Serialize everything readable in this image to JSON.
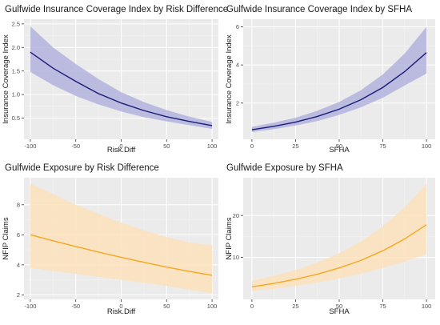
{
  "colors": {
    "panel_bg": "#ebebeb",
    "grid_major": "#ffffff",
    "coverage_line": "#1a1a7a",
    "coverage_band": "#b3b3dd",
    "exposure_line": "#f5a81e",
    "exposure_band": "#fbe2bc",
    "text": "#1a1a1a",
    "tick_text": "#4d4d4d"
  },
  "chart_data": [
    {
      "type": "line",
      "title": "Gulfwide Insurance Coverage Index by Risk Difference",
      "xlabel": "Risk.Diff",
      "ylabel": "Insurance Coverage Index",
      "xlim": [
        -107,
        107
      ],
      "ylim": [
        0.05,
        2.6
      ],
      "xticks": [
        -100,
        -50,
        0,
        50,
        100
      ],
      "xtick_labels": [
        "-100",
        "-50",
        "0",
        "50",
        "100"
      ],
      "yticks": [
        0.5,
        1.0,
        1.5,
        2.0,
        2.5
      ],
      "ytick_labels": [
        "0.5",
        "1.0",
        "1.5",
        "2.0",
        "2.5"
      ],
      "grid": true,
      "color": "coverage",
      "x": [
        -100,
        -75,
        -50,
        -25,
        0,
        25,
        50,
        75,
        100
      ],
      "y": [
        1.9,
        1.56,
        1.28,
        1.02,
        0.82,
        0.66,
        0.53,
        0.43,
        0.34
      ],
      "lower": [
        1.48,
        1.2,
        0.97,
        0.79,
        0.64,
        0.52,
        0.43,
        0.35,
        0.27
      ],
      "upper": [
        2.45,
        2.0,
        1.65,
        1.33,
        1.05,
        0.84,
        0.67,
        0.53,
        0.42
      ]
    },
    {
      "type": "line",
      "title": "Gulfwide Insurance Coverage Index by SFHA",
      "xlabel": "SFHA",
      "ylabel": "Insurance Coverage Index",
      "xlim": [
        -5,
        105
      ],
      "ylim": [
        0.1,
        6.4
      ],
      "xticks": [
        0,
        25,
        50,
        75,
        100
      ],
      "xtick_labels": [
        "0",
        "25",
        "50",
        "75",
        "100"
      ],
      "yticks": [
        2,
        4,
        6
      ],
      "ytick_labels": [
        "2",
        "4",
        "6"
      ],
      "grid": true,
      "color": "coverage",
      "x": [
        0,
        12.5,
        25,
        37.5,
        50,
        62.5,
        75,
        87.5,
        100
      ],
      "y": [
        0.6,
        0.78,
        1.0,
        1.3,
        1.68,
        2.18,
        2.82,
        3.65,
        4.65
      ],
      "lower": [
        0.48,
        0.63,
        0.82,
        1.06,
        1.38,
        1.78,
        2.28,
        2.92,
        3.55
      ],
      "upper": [
        0.75,
        0.97,
        1.23,
        1.6,
        2.06,
        2.68,
        3.5,
        4.6,
        6.0
      ]
    },
    {
      "type": "line",
      "title": "Gulfwide Exposure by Risk Difference",
      "xlabel": "Risk.Diff",
      "ylabel": "NFIP Claims",
      "xlim": [
        -107,
        107
      ],
      "ylim": [
        1.7,
        9.8
      ],
      "xticks": [
        -100,
        -50,
        0,
        50,
        100
      ],
      "xtick_labels": [
        "-100",
        "-50",
        "0",
        "50",
        "100"
      ],
      "yticks": [
        2,
        4,
        6,
        8
      ],
      "ytick_labels": [
        "2",
        "4",
        "6",
        "8"
      ],
      "grid": true,
      "color": "exposure",
      "x": [
        -100,
        -75,
        -50,
        -25,
        0,
        25,
        50,
        75,
        100
      ],
      "y": [
        6.0,
        5.6,
        5.22,
        4.85,
        4.5,
        4.17,
        3.85,
        3.56,
        3.3
      ],
      "lower": [
        3.8,
        3.6,
        3.4,
        3.2,
        3.0,
        2.8,
        2.6,
        2.35,
        2.1
      ],
      "upper": [
        9.4,
        8.7,
        8.0,
        7.4,
        6.8,
        6.3,
        5.85,
        5.5,
        5.3
      ]
    },
    {
      "type": "line",
      "title": "Gulfwide Exposure by SFHA",
      "xlabel": "SFHA",
      "ylabel": "NFIP Claims",
      "xlim": [
        -5,
        105
      ],
      "ylim": [
        0,
        29
      ],
      "xticks": [
        0,
        25,
        50,
        75,
        100
      ],
      "xtick_labels": [
        "0",
        "25",
        "50",
        "75",
        "100"
      ],
      "yticks": [
        10,
        20
      ],
      "ytick_labels": [
        "10",
        "20"
      ],
      "grid": true,
      "color": "exposure",
      "x": [
        0,
        12.5,
        25,
        37.5,
        50,
        62.5,
        75,
        87.5,
        100
      ],
      "y": [
        3.0,
        3.8,
        4.8,
        6.0,
        7.5,
        9.3,
        11.6,
        14.4,
        17.8
      ],
      "lower": [
        2.0,
        2.5,
        3.2,
        4.0,
        5.0,
        6.1,
        7.5,
        9.0,
        10.8
      ],
      "upper": [
        4.4,
        5.6,
        7.0,
        8.8,
        11.0,
        13.8,
        17.4,
        21.9,
        27.5
      ]
    }
  ]
}
